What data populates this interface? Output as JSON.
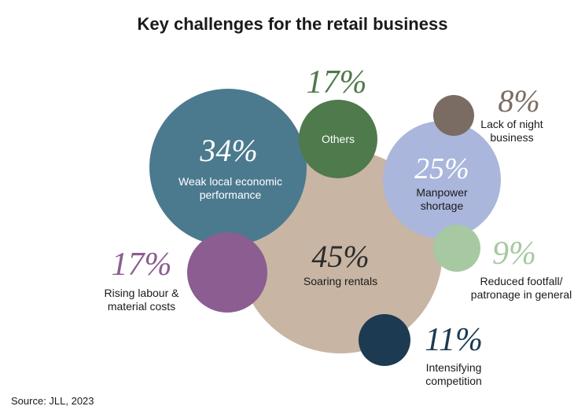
{
  "title": "Key challenges for the retail business",
  "source": "Source: JLL, 2023",
  "chart_data": {
    "type": "bubble",
    "title": "Key challenges for the retail business",
    "unit": "%",
    "series": [
      {
        "id": "rentals",
        "label": "Soaring rentals",
        "value": 45,
        "value_text": "45%",
        "color": "#c8b5a3"
      },
      {
        "id": "economic",
        "label": "Weak local economic performance",
        "value": 34,
        "value_text": "34%",
        "color": "#4b7a8f"
      },
      {
        "id": "manpower",
        "label": "Manpower shortage",
        "value": 25,
        "value_text": "25%",
        "color": "#aab6dc"
      },
      {
        "id": "others",
        "label": "Others",
        "value": 17,
        "value_text": "17%",
        "color": "#4f7a4c"
      },
      {
        "id": "labour",
        "label": "Rising labour & material costs",
        "value": 17,
        "value_text": "17%",
        "color": "#8c5d91"
      },
      {
        "id": "competition",
        "label": "Intensifying competition",
        "value": 11,
        "value_text": "11%",
        "color": "#1c3b52"
      },
      {
        "id": "footfall",
        "label": "Reduced footfall/ patronage in general",
        "value": 9,
        "value_text": "9%",
        "color": "#a6c9a2"
      },
      {
        "id": "night",
        "label": "Lack of night business",
        "value": 8,
        "value_text": "8%",
        "color": "#7a6c62"
      }
    ]
  }
}
